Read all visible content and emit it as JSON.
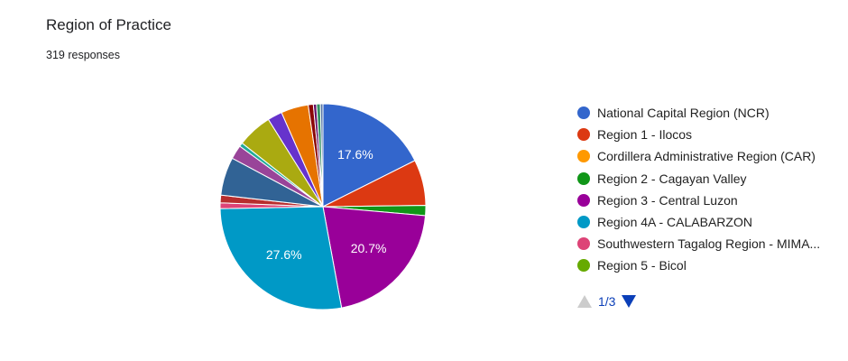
{
  "header": {
    "title": "Region of Practice",
    "responses": "319 responses"
  },
  "chart_data": {
    "type": "pie",
    "title": "Region of Practice",
    "total_responses": 319,
    "start": "12 o'clock",
    "direction": "clockwise",
    "slices": [
      {
        "name": "National Capital Region (NCR)",
        "value": 17.6,
        "label": "17.6%",
        "color": "#3366cc"
      },
      {
        "name": "Region 1 - Ilocos",
        "value": 7.2,
        "color": "#dc3912"
      },
      {
        "name": "Cordillera Administrative Region (CAR)",
        "value": 0.0,
        "color": "#ff9900"
      },
      {
        "name": "Region 2 - Cagayan Valley",
        "value": 1.6,
        "color": "#109618"
      },
      {
        "name": "Region 3 - Central Luzon",
        "value": 20.7,
        "label": "20.7%",
        "color": "#990099"
      },
      {
        "name": "Region 4A - CALABARZON",
        "value": 27.6,
        "label": "27.6%",
        "color": "#0099c6"
      },
      {
        "name": "Southwestern Tagalog Region - MIMAROPA",
        "value": 0.9,
        "color": "#dd4477"
      },
      {
        "name": "Region 5 - Bicol",
        "value": 0.0,
        "color": "#66aa00"
      },
      {
        "name": "",
        "value": 1.2,
        "color": "#b82e2e"
      },
      {
        "name": "",
        "value": 6.0,
        "color": "#316395"
      },
      {
        "name": "",
        "value": 2.2,
        "color": "#994499"
      },
      {
        "name": "",
        "value": 0.6,
        "color": "#22aa99"
      },
      {
        "name": "",
        "value": 5.5,
        "color": "#aaaa11"
      },
      {
        "name": "",
        "value": 2.3,
        "color": "#6633cc"
      },
      {
        "name": "",
        "value": 4.3,
        "color": "#e67300"
      },
      {
        "name": "",
        "value": 0.8,
        "color": "#8b0707"
      },
      {
        "name": "",
        "value": 0.5,
        "color": "#651067"
      },
      {
        "name": "",
        "value": 0.6,
        "color": "#329262"
      },
      {
        "name": "",
        "value": 0.4,
        "color": "#5574a6"
      }
    ]
  },
  "legend": {
    "items": [
      {
        "label": "National Capital Region (NCR)",
        "color": "#3366cc"
      },
      {
        "label": "Region 1 - Ilocos",
        "color": "#dc3912"
      },
      {
        "label": "Cordillera Administrative Region (CAR)",
        "color": "#ff9900"
      },
      {
        "label": "Region 2 - Cagayan Valley",
        "color": "#109618"
      },
      {
        "label": "Region 3 - Central Luzon",
        "color": "#990099"
      },
      {
        "label": "Region 4A - CALABARZON",
        "color": "#0099c6"
      },
      {
        "label": "Southwestern Tagalog Region - MIMA...",
        "color": "#dd4477"
      },
      {
        "label": "Region 5 - Bicol",
        "color": "#66aa00"
      }
    ],
    "pagination": {
      "current": 1,
      "total": 3,
      "text": "1/3"
    }
  },
  "icons": {
    "prev": "arrow-up-icon",
    "next": "arrow-down-icon"
  }
}
